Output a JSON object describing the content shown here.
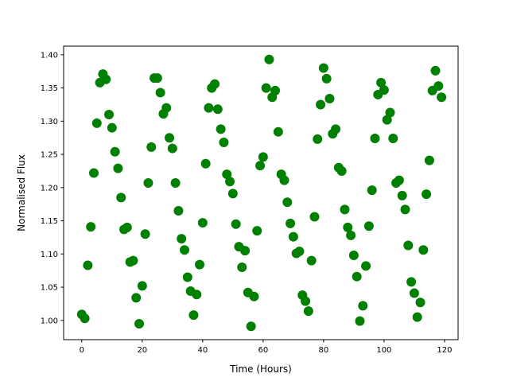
{
  "chart_data": {
    "type": "scatter",
    "title": "",
    "xlabel": "Time (Hours)",
    "ylabel": "Normalised Flux",
    "xlim": [
      -6,
      124.5
    ],
    "ylim": [
      0.971,
      1.413
    ],
    "xticks": [
      0,
      20,
      40,
      60,
      80,
      100,
      120
    ],
    "yticks": [
      "1.00",
      "1.05",
      "1.10",
      "1.15",
      "1.20",
      "1.25",
      "1.30",
      "1.35",
      "1.40"
    ],
    "grid": false,
    "color": "#008000",
    "x": [
      0,
      1,
      2,
      3,
      4,
      5,
      6,
      7,
      8,
      9,
      10,
      11,
      12,
      13,
      14,
      15,
      16,
      17,
      18,
      19,
      20,
      21,
      22,
      23,
      24,
      25,
      26,
      27,
      28,
      29,
      30,
      31,
      32,
      33,
      34,
      35,
      36,
      37,
      38,
      39,
      40,
      41,
      42,
      43,
      44,
      45,
      46,
      47,
      48,
      49,
      50,
      51,
      52,
      53,
      54,
      55,
      56,
      57,
      58,
      59,
      60,
      61,
      62,
      63,
      64,
      65,
      66,
      67,
      68,
      69,
      70,
      71,
      72,
      73,
      74,
      75,
      76,
      77,
      78,
      79,
      80,
      81,
      82,
      83,
      84,
      85,
      86,
      87,
      88,
      89,
      90,
      91,
      92,
      93,
      94,
      95,
      96,
      97,
      98,
      99,
      100,
      101,
      102,
      103,
      104,
      105,
      106,
      107,
      108,
      109,
      110,
      111,
      112,
      113,
      114,
      115,
      116,
      117,
      118,
      119
    ],
    "y": [
      1.009,
      1.003,
      1.083,
      1.141,
      1.222,
      1.297,
      1.358,
      1.371,
      1.363,
      1.31,
      1.29,
      1.254,
      1.229,
      1.185,
      1.137,
      1.14,
      1.088,
      1.09,
      1.034,
      0.995,
      1.052,
      1.13,
      1.207,
      1.261,
      1.365,
      1.365,
      1.343,
      1.311,
      1.32,
      1.275,
      1.259,
      1.207,
      1.165,
      1.123,
      1.106,
      1.065,
      1.044,
      1.008,
      1.039,
      1.084,
      1.147,
      1.236,
      1.32,
      1.35,
      1.356,
      1.318,
      1.288,
      1.268,
      1.22,
      1.209,
      1.191,
      1.145,
      1.111,
      1.08,
      1.105,
      1.042,
      0.991,
      1.036,
      1.135,
      1.233,
      1.246,
      1.35,
      1.393,
      1.336,
      1.346,
      1.284,
      1.22,
      1.211,
      1.178,
      1.146,
      1.126,
      1.101,
      1.104,
      1.038,
      1.029,
      1.014,
      1.09,
      1.156,
      1.273,
      1.325,
      1.38,
      1.364,
      1.334,
      1.281,
      1.288,
      1.23,
      1.225,
      1.167,
      1.14,
      1.128,
      1.098,
      1.066,
      0.999,
      1.022,
      1.082,
      1.142,
      1.196,
      1.274,
      1.34,
      1.358,
      1.347,
      1.302,
      1.313,
      1.274,
      1.207,
      1.211,
      1.188,
      1.167,
      1.113,
      1.058,
      1.041,
      1.005,
      1.027,
      1.106,
      1.19,
      1.241,
      1.346,
      1.376,
      1.353,
      1.336
    ]
  }
}
